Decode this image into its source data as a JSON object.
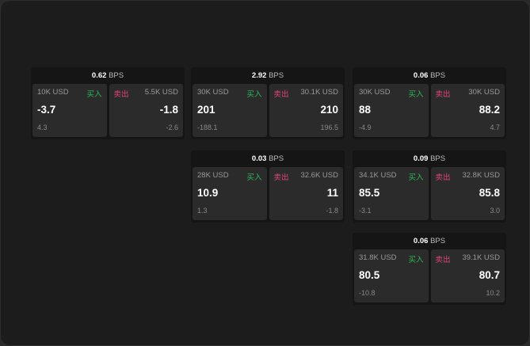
{
  "unit": "BPS",
  "buy_label": "买入",
  "sell_label": "卖出",
  "cards": [
    {
      "spread": "0.62",
      "buy": {
        "size": "10K USD",
        "price": "-3.7",
        "change": "4.3"
      },
      "sell": {
        "size": "5.5K USD",
        "price": "-1.8",
        "change": "-2.6"
      }
    },
    {
      "spread": "2.92",
      "buy": {
        "size": "30K USD",
        "price": "201",
        "change": "-188.1"
      },
      "sell": {
        "size": "30.1K USD",
        "price": "210",
        "change": "196.5"
      }
    },
    {
      "spread": "0.06",
      "buy": {
        "size": "30K USD",
        "price": "88",
        "change": "-4.9"
      },
      "sell": {
        "size": "30K USD",
        "price": "88.2",
        "change": "4.7"
      }
    },
    {
      "spread": "0.03",
      "buy": {
        "size": "28K USD",
        "price": "10.9",
        "change": "1.3"
      },
      "sell": {
        "size": "32.6K USD",
        "price": "11",
        "change": "-1.8"
      }
    },
    {
      "spread": "0.09",
      "buy": {
        "size": "34.1K USD",
        "price": "85.5",
        "change": "-3.1"
      },
      "sell": {
        "size": "32.8K USD",
        "price": "85.8",
        "change": "3.0"
      }
    },
    {
      "spread": "0.06",
      "buy": {
        "size": "31.8K USD",
        "price": "80.5",
        "change": "-10.8"
      },
      "sell": {
        "size": "39.1K USD",
        "price": "80.7",
        "change": "10.2"
      }
    }
  ]
}
